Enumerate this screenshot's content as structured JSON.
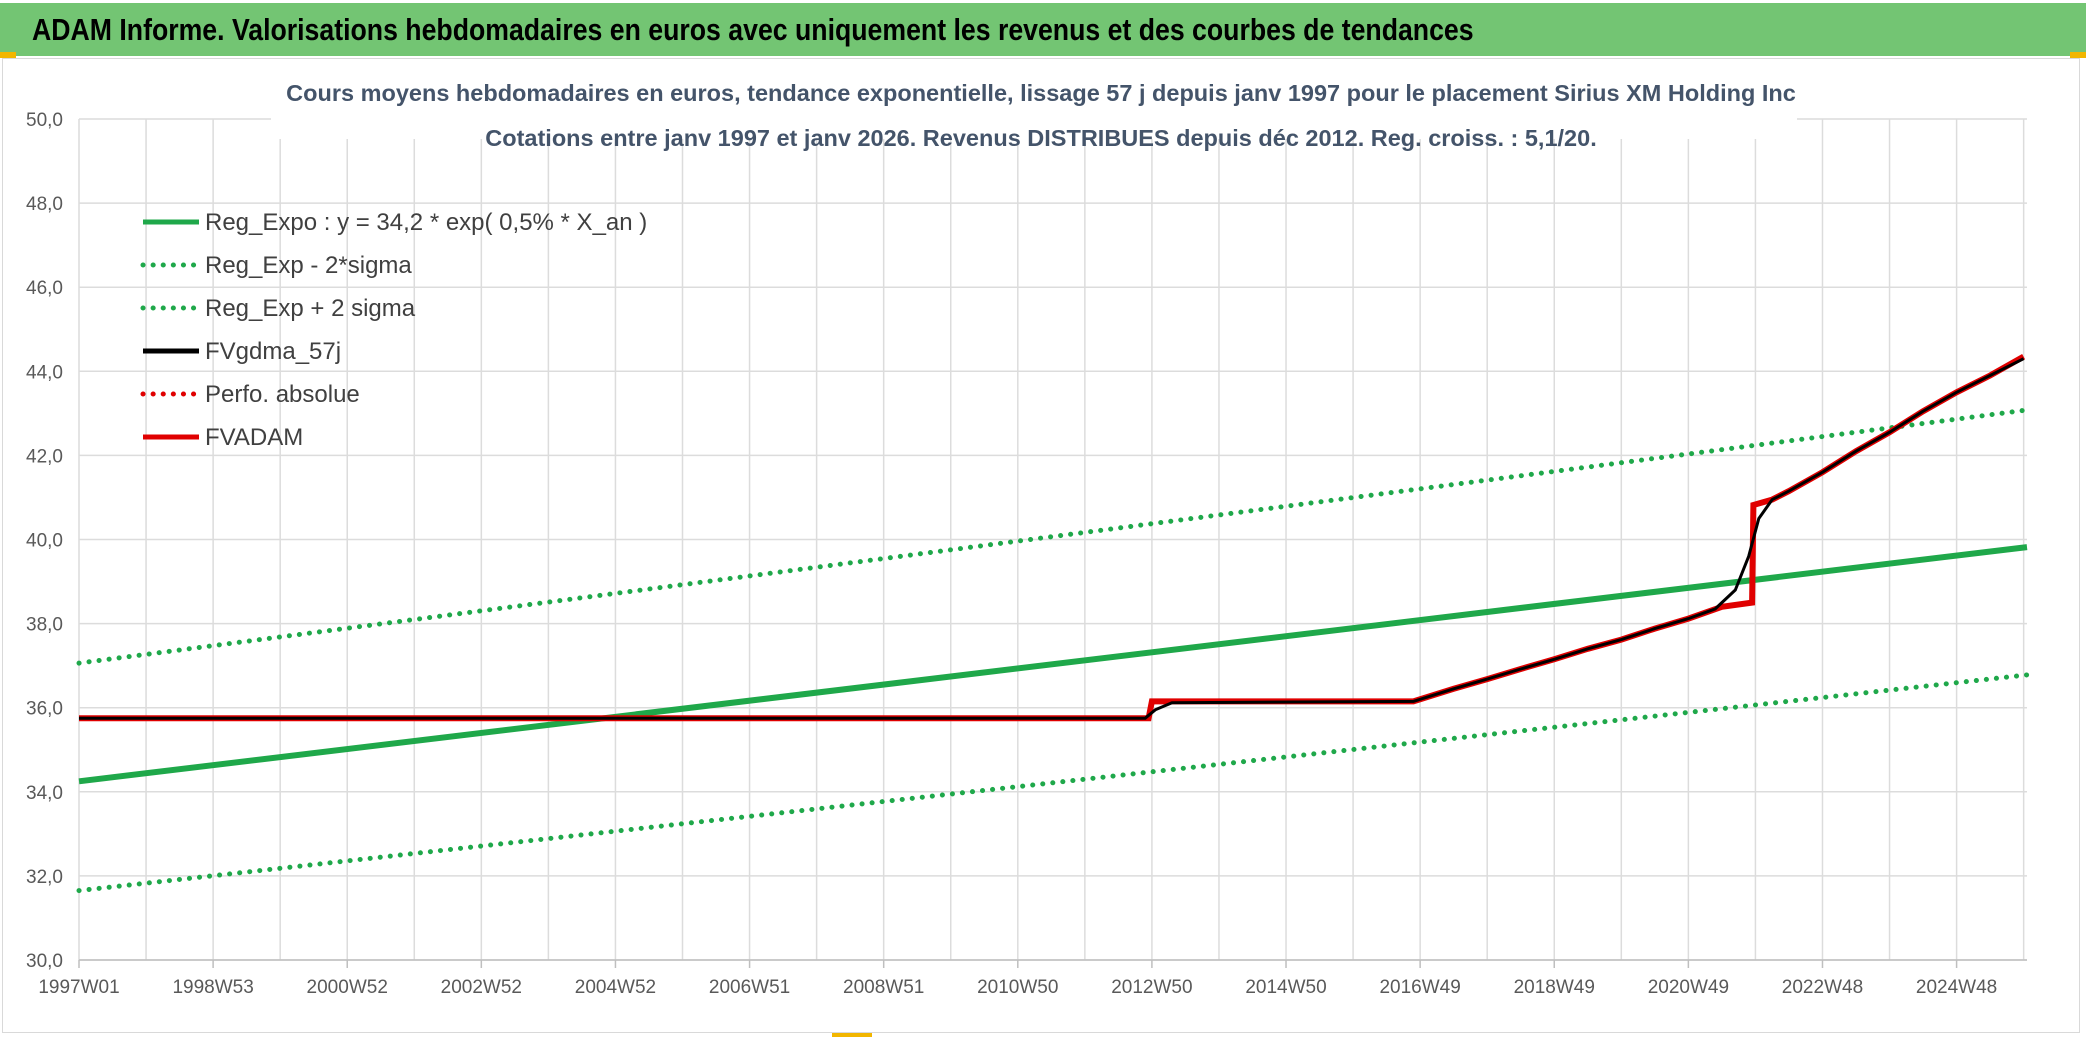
{
  "banner": {
    "title": "ADAM Informe. Valorisations hebdomadaires en euros avec uniquement les revenus et des courbes de tendances"
  },
  "colors": {
    "banner_bg": "#73c573",
    "accent_corner": "#f2b600",
    "reg_expo": "#1fa84a",
    "reg_sigma": "#1fa84a",
    "fvgdma": "#000000",
    "perfo": "#e00000",
    "fvadam": "#e00000",
    "grid": "#dcdcdc",
    "text": "#44546a"
  },
  "chart_data": {
    "type": "line",
    "title": "Cours moyens hebdomadaires en euros, tendance exponentielle, lissage 57 j depuis janv 1997 pour le placement Sirius XM Holding Inc",
    "subtitle": "Cotations entre janv 1997 et janv 2026. Revenus DISTRIBUES depuis déc 2012. Reg. croiss. : 5,1/20.",
    "xlabel": "",
    "ylabel": "",
    "ylim": [
      30,
      50
    ],
    "xlim": [
      1997.0,
      2026.05
    ],
    "grid": true,
    "legend_position": "top-left",
    "y_ticks": [
      "30,0",
      "32,0",
      "34,0",
      "36,0",
      "38,0",
      "40,0",
      "42,0",
      "44,0",
      "46,0",
      "48,0",
      "50,0"
    ],
    "x_ticks": [
      {
        "label": "1997W01",
        "x": 1997.0
      },
      {
        "label": "1998W53",
        "x": 1999.0
      },
      {
        "label": "2000W52",
        "x": 2001.0
      },
      {
        "label": "2002W52",
        "x": 2003.0
      },
      {
        "label": "2004W52",
        "x": 2005.0
      },
      {
        "label": "2006W51",
        "x": 2007.0
      },
      {
        "label": "2008W51",
        "x": 2009.0
      },
      {
        "label": "2010W50",
        "x": 2011.0
      },
      {
        "label": "2012W50",
        "x": 2013.0
      },
      {
        "label": "2014W50",
        "x": 2015.0
      },
      {
        "label": "2016W49",
        "x": 2017.0
      },
      {
        "label": "2018W49",
        "x": 2019.0
      },
      {
        "label": "2020W49",
        "x": 2021.0
      },
      {
        "label": "2022W48",
        "x": 2023.0
      },
      {
        "label": "2024W48",
        "x": 2025.0
      }
    ],
    "series": [
      {
        "name": "Reg_Expo : y = 34,2 * exp( 0,5% *  X_an )",
        "style": "solid",
        "color": "#1fa84a",
        "points": [
          [
            1997.0,
            34.25
          ],
          [
            2026.05,
            39.82
          ]
        ]
      },
      {
        "name": "Reg_Exp - 2*sigma",
        "style": "dotted",
        "color": "#1fa84a",
        "points": [
          [
            1997.0,
            31.65
          ],
          [
            2026.05,
            36.78
          ]
        ]
      },
      {
        "name": "Reg_Exp + 2 sigma",
        "style": "dotted",
        "color": "#1fa84a",
        "points": [
          [
            1997.0,
            37.06
          ],
          [
            2026.05,
            43.08
          ]
        ]
      },
      {
        "name": "FVgdma_57j",
        "style": "solid",
        "color": "#000000",
        "points": [
          [
            1997.0,
            35.75
          ],
          [
            2012.9,
            35.75
          ],
          [
            2013.05,
            35.95
          ],
          [
            2013.3,
            36.12
          ],
          [
            2016.9,
            36.15
          ],
          [
            2017.5,
            36.45
          ],
          [
            2018.0,
            36.68
          ],
          [
            2018.5,
            36.92
          ],
          [
            2019.0,
            37.15
          ],
          [
            2019.5,
            37.4
          ],
          [
            2020.0,
            37.62
          ],
          [
            2020.5,
            37.88
          ],
          [
            2021.0,
            38.12
          ],
          [
            2021.4,
            38.35
          ],
          [
            2021.7,
            38.8
          ],
          [
            2021.9,
            39.6
          ],
          [
            2022.05,
            40.5
          ],
          [
            2022.25,
            40.95
          ],
          [
            2022.5,
            41.15
          ],
          [
            2023.0,
            41.6
          ],
          [
            2023.5,
            42.1
          ],
          [
            2024.0,
            42.55
          ],
          [
            2024.5,
            43.05
          ],
          [
            2025.0,
            43.5
          ],
          [
            2025.5,
            43.9
          ],
          [
            2026.0,
            44.3
          ]
        ]
      },
      {
        "name": "Perfo. absolue",
        "style": "dotted",
        "color": "#e00000",
        "points": []
      },
      {
        "name": "FVADAM",
        "style": "solid",
        "color": "#e00000",
        "points": [
          [
            1997.0,
            35.75
          ],
          [
            2012.95,
            35.75
          ],
          [
            2013.0,
            36.15
          ],
          [
            2016.9,
            36.15
          ],
          [
            2017.5,
            36.45
          ],
          [
            2018.0,
            36.68
          ],
          [
            2018.5,
            36.92
          ],
          [
            2019.0,
            37.15
          ],
          [
            2019.5,
            37.4
          ],
          [
            2020.0,
            37.62
          ],
          [
            2020.5,
            37.88
          ],
          [
            2021.0,
            38.12
          ],
          [
            2021.5,
            38.4
          ],
          [
            2021.95,
            38.5
          ],
          [
            2021.97,
            40.82
          ],
          [
            2022.25,
            40.95
          ],
          [
            2022.5,
            41.15
          ],
          [
            2023.0,
            41.6
          ],
          [
            2023.5,
            42.1
          ],
          [
            2024.0,
            42.55
          ],
          [
            2024.5,
            43.05
          ],
          [
            2025.0,
            43.5
          ],
          [
            2025.5,
            43.9
          ],
          [
            2026.0,
            44.35
          ]
        ]
      }
    ]
  }
}
